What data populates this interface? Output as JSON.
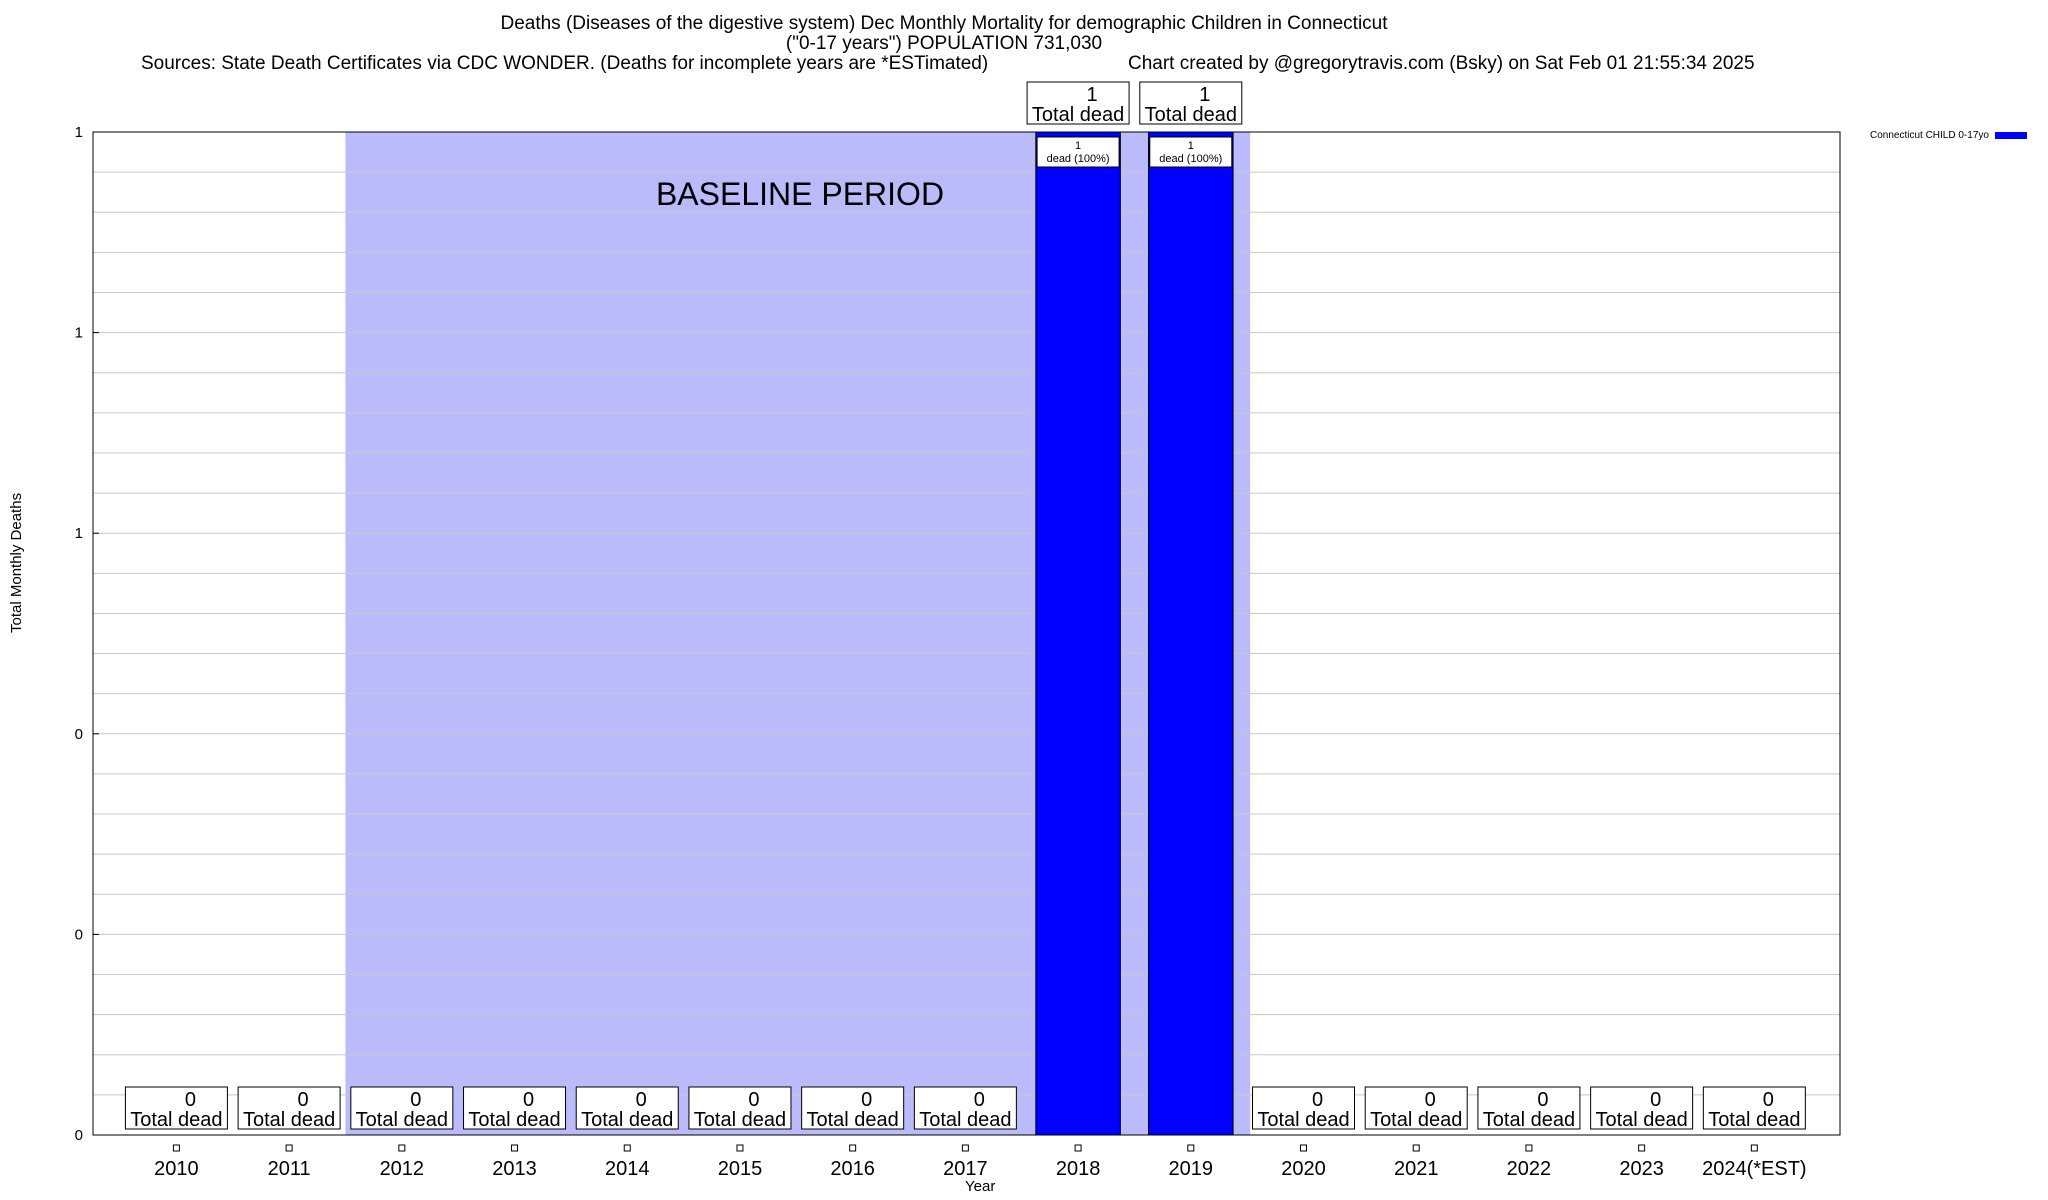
{
  "chart_data": {
    "type": "bar",
    "title": "Deaths (Diseases of the digestive system) Dec Monthly Mortality for demographic Children in Connecticut",
    "subtitle": "(\"0-17 years\") POPULATION 731,030",
    "sources": "Sources: State Death Certificates via CDC WONDER. (Deaths for incomplete years are *ESTimated)",
    "credit": "Chart created by @gregorytravis.com (Bsky) on Sat Feb 01 21:55:34 2025",
    "xlabel": "Year",
    "ylabel": "Total Monthly Deaths",
    "categories": [
      "2010",
      "2011",
      "2012",
      "2013",
      "2014",
      "2015",
      "2016",
      "2017",
      "2018",
      "2019",
      "2020",
      "2021",
      "2022",
      "2023",
      "2024(*EST)"
    ],
    "series": [
      {
        "name": "Connecticut CHILD 0-17yo",
        "color": "#0000ff",
        "values": [
          0,
          0,
          0,
          0,
          0,
          0,
          0,
          0,
          1,
          1,
          0,
          0,
          0,
          0,
          0
        ]
      }
    ],
    "total_label": "Total dead",
    "bar_labels": [
      "",
      "",
      "",
      "",
      "",
      "",
      "",
      "",
      "1\ndead (100%)",
      "1\ndead (100%)",
      "",
      "",
      "",
      "",
      ""
    ],
    "ylim": [
      0,
      1
    ],
    "ytick_values": [
      0,
      0.2,
      0.4,
      0.6,
      0.8,
      1.0
    ],
    "ytick_labels": [
      "0",
      "0",
      "0",
      "1",
      "1",
      "1"
    ],
    "baseline": {
      "label": "BASELINE PERIOD",
      "from": "2012",
      "to": "2019",
      "color": "#bbbbfb"
    },
    "grid": true,
    "legend_position": "top-right"
  }
}
